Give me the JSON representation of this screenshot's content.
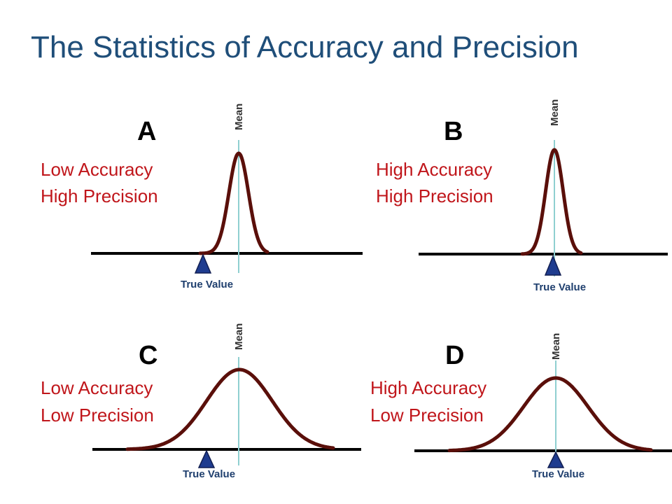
{
  "title": "The Statistics of Accuracy and Precision",
  "mean_label": "Mean",
  "true_value_label": "True Value",
  "panels": [
    {
      "letter": "A",
      "line1": "Low Accuracy",
      "line2": "High Precision"
    },
    {
      "letter": "B",
      "line1": "High Accuracy",
      "line2": "High Precision"
    },
    {
      "letter": "C",
      "line1": "Low Accuracy",
      "line2": "Low Precision"
    },
    {
      "letter": "D",
      "line1": "High Accuracy",
      "line2": "Low Precision"
    }
  ],
  "colors": {
    "title": "#1f4e79",
    "description": "#c0161b",
    "curve": "#5a0f0a",
    "mean_line": "#8fcfd0",
    "marker": "#1f3c8f"
  }
}
